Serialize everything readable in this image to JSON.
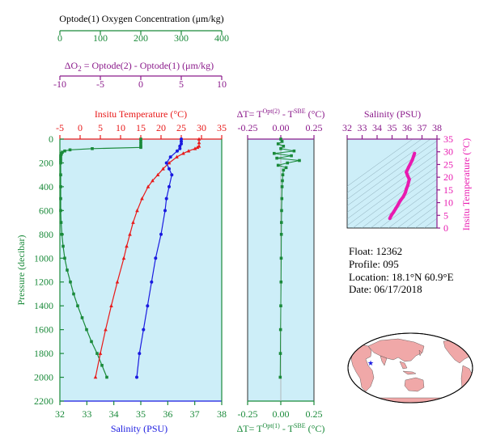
{
  "colors": {
    "oxygen": "#1a8a3a",
    "dox": "#8b1a8b",
    "temperature": "#e81a1a",
    "salinity": "#1a1ae0",
    "salinity_ts": "#e81ab0",
    "panel_bg": "#cdeef8",
    "map_land": "#f0a8a8",
    "map_ocean": "#ffffff",
    "float_marker": "#1a1ae0"
  },
  "axes": {
    "oxygen_title": "Optode(1) Oxygen Concentration (μm/kg)",
    "oxygen_ticks": [
      "0",
      "100",
      "200",
      "300",
      "400"
    ],
    "dox_title_prefix": "ΔO",
    "dox_title_sub": "2",
    "dox_title_rest": " = Optode(2) - Optode(1)   (μm/kg)",
    "dox_ticks": [
      "-10",
      "-5",
      "0",
      "5",
      "10"
    ],
    "temp_title": "Insitu Temperature (°C)",
    "temp_ticks": [
      "-5",
      "0",
      "5",
      "10",
      "15",
      "20",
      "25",
      "30",
      "35"
    ],
    "sal_title": "Salinity (PSU)",
    "sal_ticks": [
      "32",
      "33",
      "34",
      "35",
      "36",
      "37",
      "38"
    ],
    "pressure_title": "Pressure (decibar)",
    "pressure_ticks": [
      "0",
      "200",
      "400",
      "600",
      "800",
      "1000",
      "1200",
      "1400",
      "1600",
      "1800",
      "2000",
      "2200"
    ],
    "dt_top_title_a": "ΔT= T",
    "dt_top_sup_a": "Opt(2)",
    "dt_top_title_b": " - T",
    "dt_top_sup_b": "SBE",
    "dt_top_title_c": " (°C)",
    "dt_bottom_title_a": "ΔT= T",
    "dt_bottom_sup_a": "Opt(1)",
    "dt_bottom_title_b": " - T",
    "dt_bottom_sup_b": "SBE",
    "dt_bottom_title_c": " (°C)",
    "dt_ticks": [
      "-0.25",
      "0.00",
      "0.25"
    ],
    "ts_sal_title": "Salinity (PSU)",
    "ts_sal_ticks": [
      "32",
      "33",
      "34",
      "35",
      "36",
      "37",
      "38"
    ],
    "ts_temp_title": "Insitu Temperature (°C)",
    "ts_temp_ticks": [
      "0",
      "5",
      "10",
      "15",
      "20",
      "25",
      "30",
      "35"
    ]
  },
  "info": {
    "float": "Float:  12362",
    "profile": "Profile:  095",
    "location": "Location:  18.1°N  60.9°E",
    "date": "Date:  06/17/2018"
  },
  "chart_data": [
    {
      "type": "line",
      "name": "oxygen_profile",
      "x_unit": "μm/kg",
      "xlim": [
        0,
        400
      ],
      "ylim": [
        2200,
        0
      ],
      "pressure": [
        0,
        20,
        40,
        60,
        70,
        80,
        90,
        100,
        110,
        120,
        130,
        140,
        160,
        180,
        200,
        300,
        400,
        500,
        600,
        700,
        800,
        900,
        1000,
        1100,
        1200,
        1300,
        1400,
        1500,
        1600,
        1700,
        1800,
        1900,
        2000
      ],
      "oxygen": [
        200,
        200,
        200,
        200,
        200,
        80,
        25,
        12,
        6,
        4,
        3,
        2,
        2,
        2,
        2,
        2,
        2,
        2,
        2,
        3,
        5,
        8,
        12,
        18,
        26,
        34,
        44,
        55,
        66,
        78,
        92,
        104,
        116
      ]
    },
    {
      "type": "line",
      "name": "temperature_profile",
      "x_unit": "°C",
      "xlim": [
        -5,
        35
      ],
      "ylim": [
        2200,
        0
      ],
      "pressure": [
        0,
        30,
        60,
        70,
        80,
        100,
        120,
        150,
        200,
        250,
        300,
        350,
        400,
        500,
        600,
        700,
        800,
        900,
        1000,
        1200,
        1400,
        1600,
        1800,
        2000
      ],
      "temperature": [
        29.4,
        29.4,
        29.4,
        29.0,
        28.4,
        26.8,
        25.5,
        23.9,
        22.0,
        20.5,
        19.2,
        17.9,
        16.8,
        15.3,
        14.1,
        13.1,
        12.3,
        11.5,
        10.8,
        9.2,
        7.7,
        6.3,
        5.0,
        3.8
      ]
    },
    {
      "type": "line",
      "name": "salinity_profile",
      "x_unit": "PSU",
      "xlim": [
        32,
        38
      ],
      "ylim": [
        2200,
        0
      ],
      "pressure": [
        0,
        20,
        40,
        60,
        80,
        100,
        150,
        200,
        250,
        300,
        400,
        500,
        600,
        800,
        1000,
        1200,
        1400,
        1600,
        1800,
        2000
      ],
      "salinity": [
        36.5,
        36.5,
        36.5,
        36.45,
        36.45,
        36.35,
        36.1,
        35.95,
        36.05,
        36.15,
        36.05,
        35.95,
        35.9,
        35.75,
        35.55,
        35.4,
        35.25,
        35.1,
        34.95,
        34.85
      ]
    },
    {
      "type": "scatter",
      "name": "delta_temperature",
      "x_unit": "°C",
      "xlim": [
        -0.25,
        0.25
      ],
      "ylim": [
        2200,
        0
      ],
      "pressure": [
        0,
        20,
        40,
        60,
        80,
        100,
        120,
        140,
        160,
        180,
        200,
        220,
        240,
        260,
        300,
        350,
        400,
        500,
        600,
        700,
        800,
        1000,
        1200,
        1400,
        1600,
        1800,
        2000
      ],
      "delta_t": [
        0.0,
        0.01,
        -0.02,
        0.02,
        0.0,
        0.1,
        -0.05,
        0.08,
        -0.03,
        0.14,
        0.05,
        -0.02,
        0.04,
        0.02,
        0.015,
        0.012,
        0.01,
        0.008,
        0.006,
        0.005,
        0.004,
        0.003,
        0.002,
        0.0,
        -0.002,
        -0.003,
        -0.004
      ]
    },
    {
      "type": "line",
      "name": "ts_diagram",
      "xlabel": "Salinity (PSU)",
      "ylabel": "Insitu Temperature (°C)",
      "xlim": [
        32,
        38
      ],
      "ylim": [
        0,
        35
      ],
      "salinity": [
        34.85,
        34.95,
        35.1,
        35.25,
        35.4,
        35.55,
        35.75,
        35.9,
        35.95,
        36.05,
        36.15,
        36.05,
        35.95,
        36.1,
        36.35,
        36.45,
        36.5
      ],
      "temperature": [
        3.8,
        5.0,
        6.3,
        7.7,
        9.2,
        10.8,
        12.3,
        14.1,
        15.3,
        16.8,
        19.2,
        20.5,
        22.0,
        23.9,
        26.8,
        28.4,
        29.4
      ]
    }
  ]
}
